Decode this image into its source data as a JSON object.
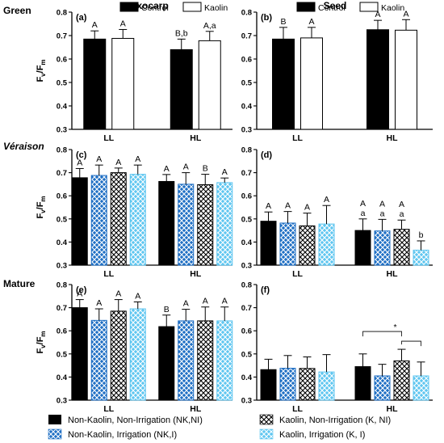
{
  "rows": [
    {
      "label": "Green",
      "italic": false
    },
    {
      "label": "Véraison",
      "italic": true
    },
    {
      "label": "Mature",
      "italic": false
    }
  ],
  "columns": [
    "Exocarp",
    "Seed"
  ],
  "y_label_main": "F",
  "y_label_sub1": "v",
  "y_label_slash": "/F",
  "y_label_sub2": "m",
  "inset_legend": [
    "Control",
    "Kaolin"
  ],
  "bottom_legend": [
    "Non-Kaolin, Non-Irrigation (NK,NI)",
    "Kaolin, Non-Irrigation (K, NI)",
    "Non-Kaolin, Irrigation (NK,I)",
    "Kaolin, Irrigation (K, I)"
  ],
  "colors": {
    "black": "#000000",
    "blue": "#1f6fc4",
    "lightblue": "#5fc6f0",
    "white": "#ffffff"
  },
  "chart_data": [
    {
      "panel": "(a)",
      "type": "bar",
      "categories": [
        "LL",
        "HL"
      ],
      "ylim": [
        0.3,
        0.8
      ],
      "yticks": [
        "0.3",
        "0.4",
        "0.5",
        "0.6",
        "0.7",
        "0.8"
      ],
      "series": [
        {
          "name": "Control",
          "values": [
            0.685,
            0.64
          ],
          "errors": [
            0.035,
            0.045
          ],
          "letters": [
            "A",
            "B,b"
          ]
        },
        {
          "name": "Kaolin",
          "values": [
            0.688,
            0.678
          ],
          "errors": [
            0.038,
            0.04
          ],
          "letters": [
            "A",
            "A,a"
          ]
        }
      ]
    },
    {
      "panel": "(b)",
      "type": "bar",
      "categories": [
        "LL",
        "HL"
      ],
      "ylim": [
        0.3,
        0.8
      ],
      "yticks": [
        "0.3",
        "0.4",
        "0.5",
        "0.6",
        "0.7",
        "0.8"
      ],
      "series": [
        {
          "name": "Control",
          "values": [
            0.685,
            0.725
          ],
          "errors": [
            0.05,
            0.04
          ],
          "letters": [
            "B",
            "A"
          ]
        },
        {
          "name": "Kaolin",
          "values": [
            0.69,
            0.723
          ],
          "errors": [
            0.045,
            0.045
          ],
          "letters": [
            "A",
            "A"
          ]
        }
      ]
    },
    {
      "panel": "(c)",
      "type": "bar",
      "categories": [
        "LL",
        "HL"
      ],
      "ylim": [
        0.3,
        0.8
      ],
      "yticks": [
        "0.3",
        "0.4",
        "0.5",
        "0.6",
        "0.7",
        "0.8"
      ],
      "series": [
        {
          "name": "NK,NI",
          "values": [
            0.678,
            0.662
          ],
          "errors": [
            0.04,
            0.03
          ],
          "letters": [
            "A",
            "A"
          ]
        },
        {
          "name": "NK,I",
          "values": [
            0.688,
            0.65
          ],
          "errors": [
            0.045,
            0.05
          ],
          "letters": [
            "A",
            "A"
          ]
        },
        {
          "name": "K,NI",
          "values": [
            0.7,
            0.648
          ],
          "errors": [
            0.02,
            0.045
          ],
          "letters": [
            "A",
            "B"
          ]
        },
        {
          "name": "K,I",
          "values": [
            0.693,
            0.657
          ],
          "errors": [
            0.04,
            0.02
          ],
          "letters": [
            "A",
            "A"
          ]
        }
      ]
    },
    {
      "panel": "(d)",
      "type": "bar",
      "categories": [
        "LL",
        "HL"
      ],
      "ylim": [
        0.3,
        0.8
      ],
      "yticks": [
        "0.3",
        "0.4",
        "0.5",
        "0.6",
        "0.7",
        "0.8"
      ],
      "series": [
        {
          "name": "NK,NI",
          "values": [
            0.49,
            0.45
          ],
          "errors": [
            0.04,
            0.05
          ],
          "letters": [
            "A",
            "A\na"
          ]
        },
        {
          "name": "NK,I",
          "values": [
            0.482,
            0.448
          ],
          "errors": [
            0.05,
            0.05
          ],
          "letters": [
            "A",
            "A\na"
          ]
        },
        {
          "name": "K,NI",
          "values": [
            0.47,
            0.455
          ],
          "errors": [
            0.055,
            0.04
          ],
          "letters": [
            "A",
            "A\na"
          ]
        },
        {
          "name": "K,I",
          "values": [
            0.478,
            0.365
          ],
          "errors": [
            0.08,
            0.04
          ],
          "letters": [
            "A",
            "b"
          ]
        }
      ]
    },
    {
      "panel": "(e)",
      "type": "bar",
      "categories": [
        "LL",
        "HL"
      ],
      "ylim": [
        0.3,
        0.8
      ],
      "yticks": [
        "0.3",
        "0.4",
        "0.5",
        "0.6",
        "0.7",
        "0.8"
      ],
      "series": [
        {
          "name": "NK,NI",
          "values": [
            0.7,
            0.618
          ],
          "errors": [
            0.035,
            0.05
          ],
          "letters": [
            "A",
            "B"
          ]
        },
        {
          "name": "NK,I",
          "values": [
            0.645,
            0.643
          ],
          "errors": [
            0.05,
            0.05
          ],
          "letters": [
            "A",
            "A"
          ]
        },
        {
          "name": "K,NI",
          "values": [
            0.685,
            0.643
          ],
          "errors": [
            0.05,
            0.06
          ],
          "letters": [
            "A",
            "A"
          ]
        },
        {
          "name": "K,I",
          "values": [
            0.695,
            0.643
          ],
          "errors": [
            0.03,
            0.06
          ],
          "letters": [
            "A",
            "A"
          ]
        }
      ]
    },
    {
      "panel": "(f)",
      "type": "bar",
      "categories": [
        "LL",
        "HL"
      ],
      "ylim": [
        0.3,
        0.8
      ],
      "yticks": [
        "0.3",
        "0.4",
        "0.5",
        "0.6",
        "0.7",
        "0.8"
      ],
      "series": [
        {
          "name": "NK,NI",
          "values": [
            0.432,
            0.445
          ],
          "errors": [
            0.045,
            0.055
          ],
          "letters": [
            "",
            ""
          ]
        },
        {
          "name": "NK,I",
          "values": [
            0.438,
            0.405
          ],
          "errors": [
            0.055,
            0.05
          ],
          "letters": [
            "",
            ""
          ]
        },
        {
          "name": "K,NI",
          "values": [
            0.437,
            0.47
          ],
          "errors": [
            0.05,
            0.05
          ],
          "letters": [
            "",
            ""
          ]
        },
        {
          "name": "K,I",
          "values": [
            0.422,
            0.405
          ],
          "errors": [
            0.075,
            0.06
          ],
          "letters": [
            "",
            ""
          ]
        }
      ],
      "annotation": "*"
    }
  ]
}
